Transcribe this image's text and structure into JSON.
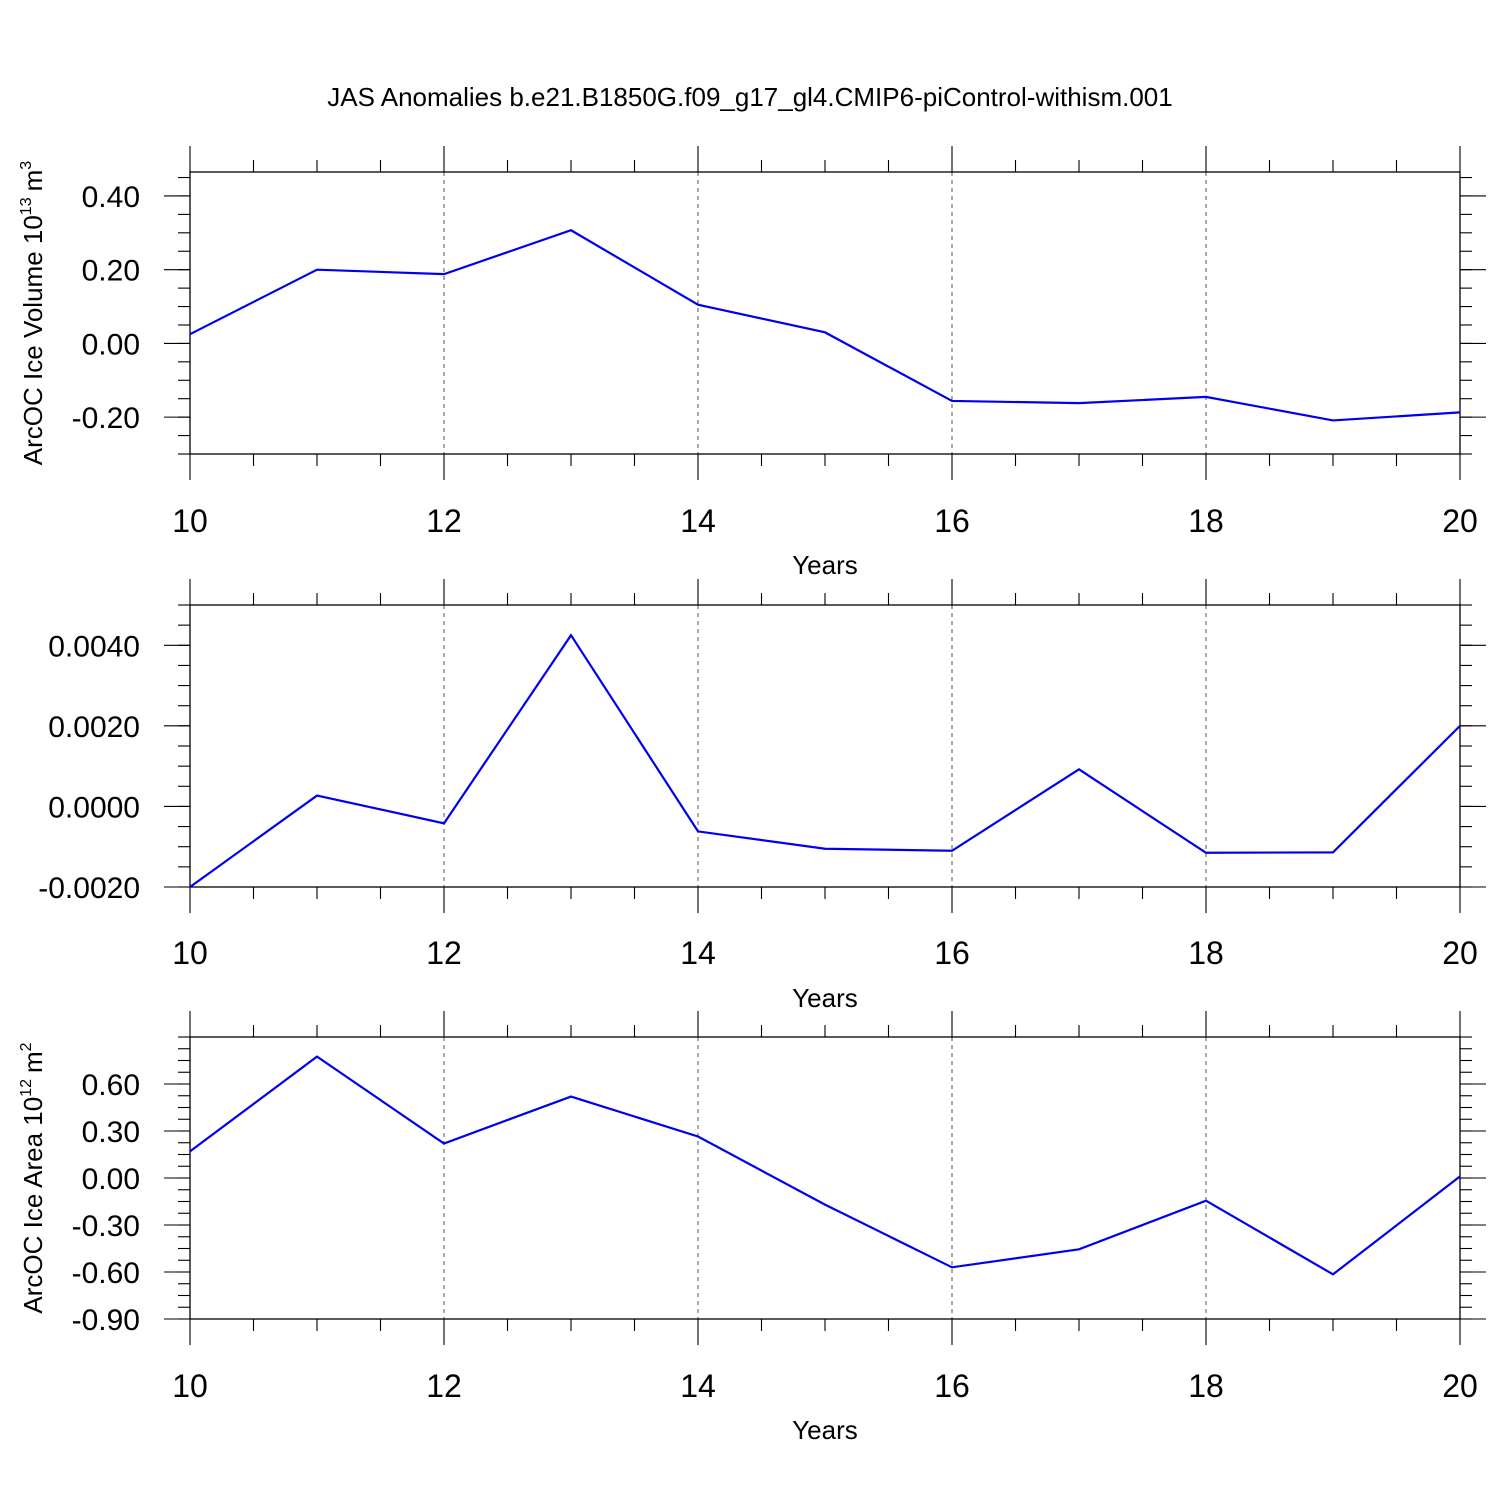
{
  "title": "JAS Anomalies b.e21.B1850G.f09_g17_gl4.CMIP6-piControl-withism.001",
  "colors": {
    "series": "#0000ee",
    "frame": "#000000",
    "grid": "#555555"
  },
  "chart_data": [
    {
      "type": "line",
      "title": "",
      "xlabel": "Years",
      "ylabel_main": "ArcOC Ice Volume 10",
      "ylabel_sup": "13",
      "ylabel_unit": "m",
      "ylabel_unit_sup": "3",
      "x": [
        10,
        11,
        12,
        13,
        14,
        15,
        16,
        17,
        18,
        19,
        20
      ],
      "series": [
        {
          "values": [
            0.025,
            0.2,
            0.188,
            0.307,
            0.105,
            0.03,
            -0.156,
            -0.162,
            -0.145,
            -0.209,
            -0.187
          ]
        }
      ],
      "xlim": [
        10,
        20
      ],
      "ylim": [
        -0.3,
        0.465
      ],
      "xticks": [
        "10",
        "12",
        "14",
        "16",
        "18",
        "20"
      ],
      "yticks": [
        {
          "value": 0.4,
          "label": "0.40"
        },
        {
          "value": 0.2,
          "label": "0.20"
        },
        {
          "value": 0.0,
          "label": "0.00"
        },
        {
          "value": -0.2,
          "label": "-0.20"
        }
      ],
      "grid": "x-dashed"
    },
    {
      "type": "line",
      "title": "",
      "xlabel": "Years",
      "ylabel_main": "",
      "ylabel_sup": "",
      "ylabel_unit": "",
      "ylabel_unit_sup": "",
      "x": [
        10,
        11,
        12,
        13,
        14,
        15,
        16,
        17,
        18,
        19,
        20
      ],
      "series": [
        {
          "values": [
            -0.002,
            0.00027,
            -0.00042,
            0.00425,
            -0.00062,
            -0.00105,
            -0.0011,
            0.00092,
            -0.00115,
            -0.00114,
            0.002
          ]
        }
      ],
      "xlim": [
        10,
        20
      ],
      "ylim": [
        -0.002,
        0.005
      ],
      "xticks": [
        "10",
        "12",
        "14",
        "16",
        "18",
        "20"
      ],
      "yticks": [
        {
          "value": 0.004,
          "label": "0.0040"
        },
        {
          "value": 0.002,
          "label": "0.0020"
        },
        {
          "value": 0.0,
          "label": "0.0000"
        },
        {
          "value": -0.002,
          "label": "-0.0020"
        }
      ],
      "grid": "x-dashed"
    },
    {
      "type": "line",
      "title": "",
      "xlabel": "Years",
      "ylabel_main": "ArcOC Ice Area 10",
      "ylabel_sup": "12",
      "ylabel_unit": "m",
      "ylabel_unit_sup": "2",
      "x": [
        10,
        11,
        12,
        13,
        14,
        15,
        16,
        17,
        18,
        19,
        20
      ],
      "series": [
        {
          "values": [
            0.17,
            0.775,
            0.22,
            0.52,
            0.265,
            -0.17,
            -0.57,
            -0.455,
            -0.145,
            -0.615,
            0.01
          ]
        }
      ],
      "xlim": [
        10,
        20
      ],
      "ylim": [
        -0.9,
        0.9
      ],
      "xticks": [
        "10",
        "12",
        "14",
        "16",
        "18",
        "20"
      ],
      "yticks": [
        {
          "value": 0.6,
          "label": "0.60"
        },
        {
          "value": 0.3,
          "label": "0.30"
        },
        {
          "value": 0.0,
          "label": "0.00"
        },
        {
          "value": -0.3,
          "label": "-0.30"
        },
        {
          "value": -0.6,
          "label": "-0.60"
        },
        {
          "value": -0.9,
          "label": "-0.90"
        }
      ],
      "grid": "x-dashed"
    }
  ]
}
